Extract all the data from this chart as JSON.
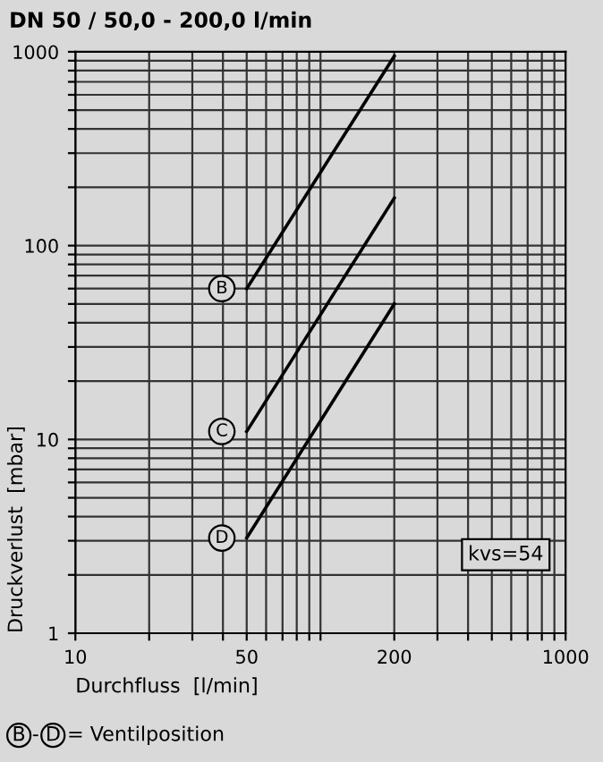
{
  "chart_data": {
    "type": "line",
    "title": "DN 50 / 50,0 - 200,0 l/min",
    "xlabel": "Durchfluss  [l/min]",
    "ylabel": "Druckverlust  [mbar]",
    "x": [
      50,
      200
    ],
    "series": [
      {
        "name": "B",
        "color": "#000000",
        "values": [
          60,
          950
        ]
      },
      {
        "name": "C",
        "color": "#000000",
        "values": [
          11,
          176
        ]
      },
      {
        "name": "D",
        "color": "#000000",
        "values": [
          3.1,
          50
        ]
      }
    ],
    "log": "xy",
    "xlim": [
      10,
      1000
    ],
    "ylim": [
      1,
      1000
    ],
    "xticks": [
      10,
      {
        "value": 20,
        "label": null
      },
      {
        "value": 30,
        "label": null
      },
      {
        "value": 40,
        "label": null
      },
      50,
      {
        "value": 60,
        "label": null
      },
      {
        "value": 70,
        "label": null
      },
      {
        "value": 80,
        "label": null
      },
      {
        "value": 90,
        "label": null
      },
      {
        "value": 100,
        "label": null
      },
      200,
      {
        "value": 300,
        "label": null
      },
      {
        "value": 400,
        "label": null
      },
      {
        "value": 500,
        "label": null
      },
      {
        "value": 600,
        "label": null
      },
      {
        "value": 700,
        "label": null
      },
      {
        "value": 800,
        "label": null
      },
      {
        "value": 900,
        "label": null
      },
      1000
    ],
    "yticks": [
      1,
      {
        "value": 2,
        "label": null
      },
      {
        "value": 3,
        "label": null
      },
      {
        "value": 4,
        "label": null
      },
      {
        "value": 5,
        "label": null
      },
      {
        "value": 6,
        "label": null
      },
      {
        "value": 7,
        "label": null
      },
      {
        "value": 8,
        "label": null
      },
      {
        "value": 9,
        "label": null
      },
      10,
      {
        "value": 20,
        "label": null
      },
      {
        "value": 30,
        "label": null
      },
      {
        "value": 40,
        "label": null
      },
      {
        "value": 50,
        "label": null
      },
      {
        "value": 60,
        "label": null
      },
      {
        "value": 70,
        "label": null
      },
      {
        "value": 80,
        "label": null
      },
      {
        "value": 90,
        "label": null
      },
      100,
      {
        "value": 200,
        "label": null
      },
      {
        "value": 300,
        "label": null
      },
      {
        "value": 400,
        "label": null
      },
      {
        "value": 500,
        "label": null
      },
      {
        "value": 600,
        "label": null
      },
      {
        "value": 700,
        "label": null
      },
      {
        "value": 800,
        "label": null
      },
      {
        "value": 900,
        "label": null
      },
      1000
    ],
    "grid": true,
    "legend": false,
    "marker": "none",
    "line_style": "solid",
    "annotations": [
      "kvs=54",
      "B - D = Ventilposition"
    ]
  }
}
